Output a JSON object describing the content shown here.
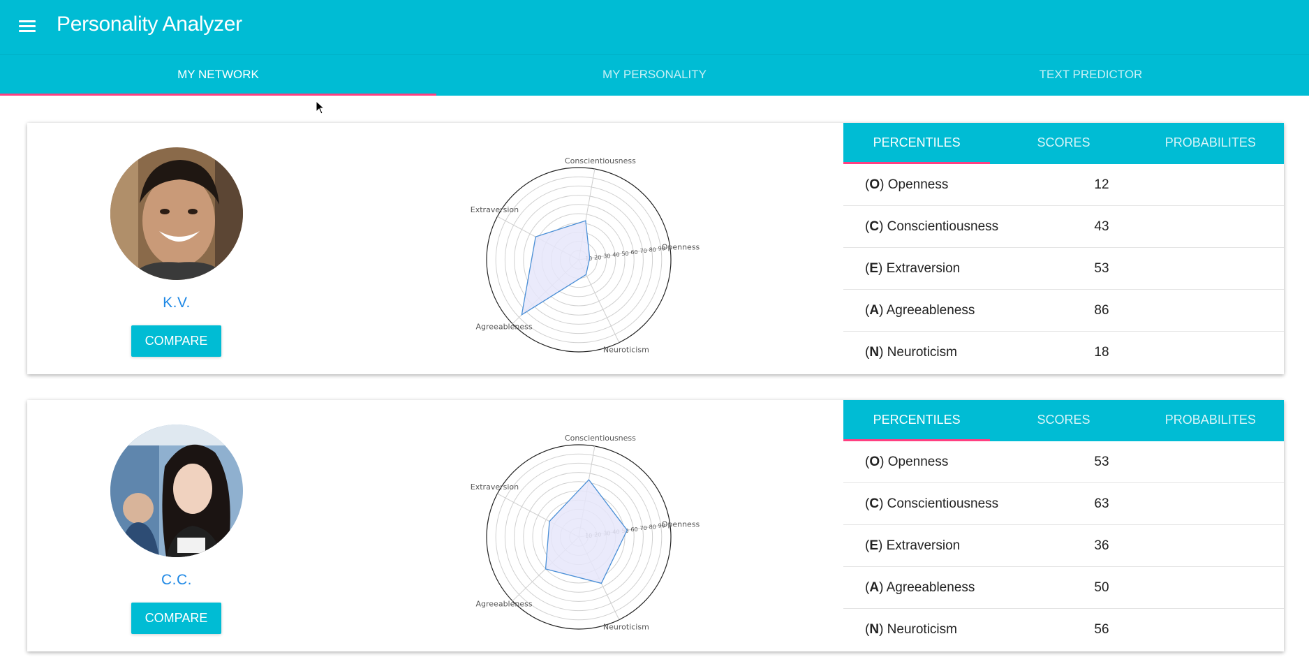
{
  "app": {
    "title": "Personality Analyzer"
  },
  "nav_tabs": [
    "MY NETWORK",
    "MY PERSONALITY",
    "TEXT PREDICTOR"
  ],
  "profiles": [
    {
      "name": "K.V.",
      "compare_label": "COMPARE",
      "stat_tabs": [
        "PERCENTILES",
        "SCORES",
        "PROBABILITES"
      ],
      "traits": [
        {
          "letter": "O",
          "name": "Openness",
          "value": 12
        },
        {
          "letter": "C",
          "name": "Conscientiousness",
          "value": 43
        },
        {
          "letter": "E",
          "name": "Extraversion",
          "value": 53
        },
        {
          "letter": "A",
          "name": "Agreeableness",
          "value": 86
        },
        {
          "letter": "N",
          "name": "Neuroticism",
          "value": 18
        }
      ]
    },
    {
      "name": "C.C.",
      "compare_label": "COMPARE",
      "stat_tabs": [
        "PERCENTILES",
        "SCORES",
        "PROBABILITES"
      ],
      "traits": [
        {
          "letter": "O",
          "name": "Openness",
          "value": 53
        },
        {
          "letter": "C",
          "name": "Conscientiousness",
          "value": 63
        },
        {
          "letter": "E",
          "name": "Extraversion",
          "value": 36
        },
        {
          "letter": "A",
          "name": "Agreeableness",
          "value": 50
        },
        {
          "letter": "N",
          "name": "Neuroticism",
          "value": 56
        }
      ]
    }
  ],
  "radar_labels": [
    "Openness",
    "Conscientiousness",
    "Extraversion",
    "Agreeableness",
    "Neuroticism"
  ],
  "radar_ticks": [
    "10",
    "20",
    "30",
    "40",
    "50",
    "60",
    "70",
    "80",
    "90"
  ],
  "colors": {
    "primary": "#00bcd4",
    "accent": "#ff4081",
    "link": "#1e88e5",
    "radar_fill": "#e6e6fa",
    "radar_line": "#4a8fd6"
  }
}
